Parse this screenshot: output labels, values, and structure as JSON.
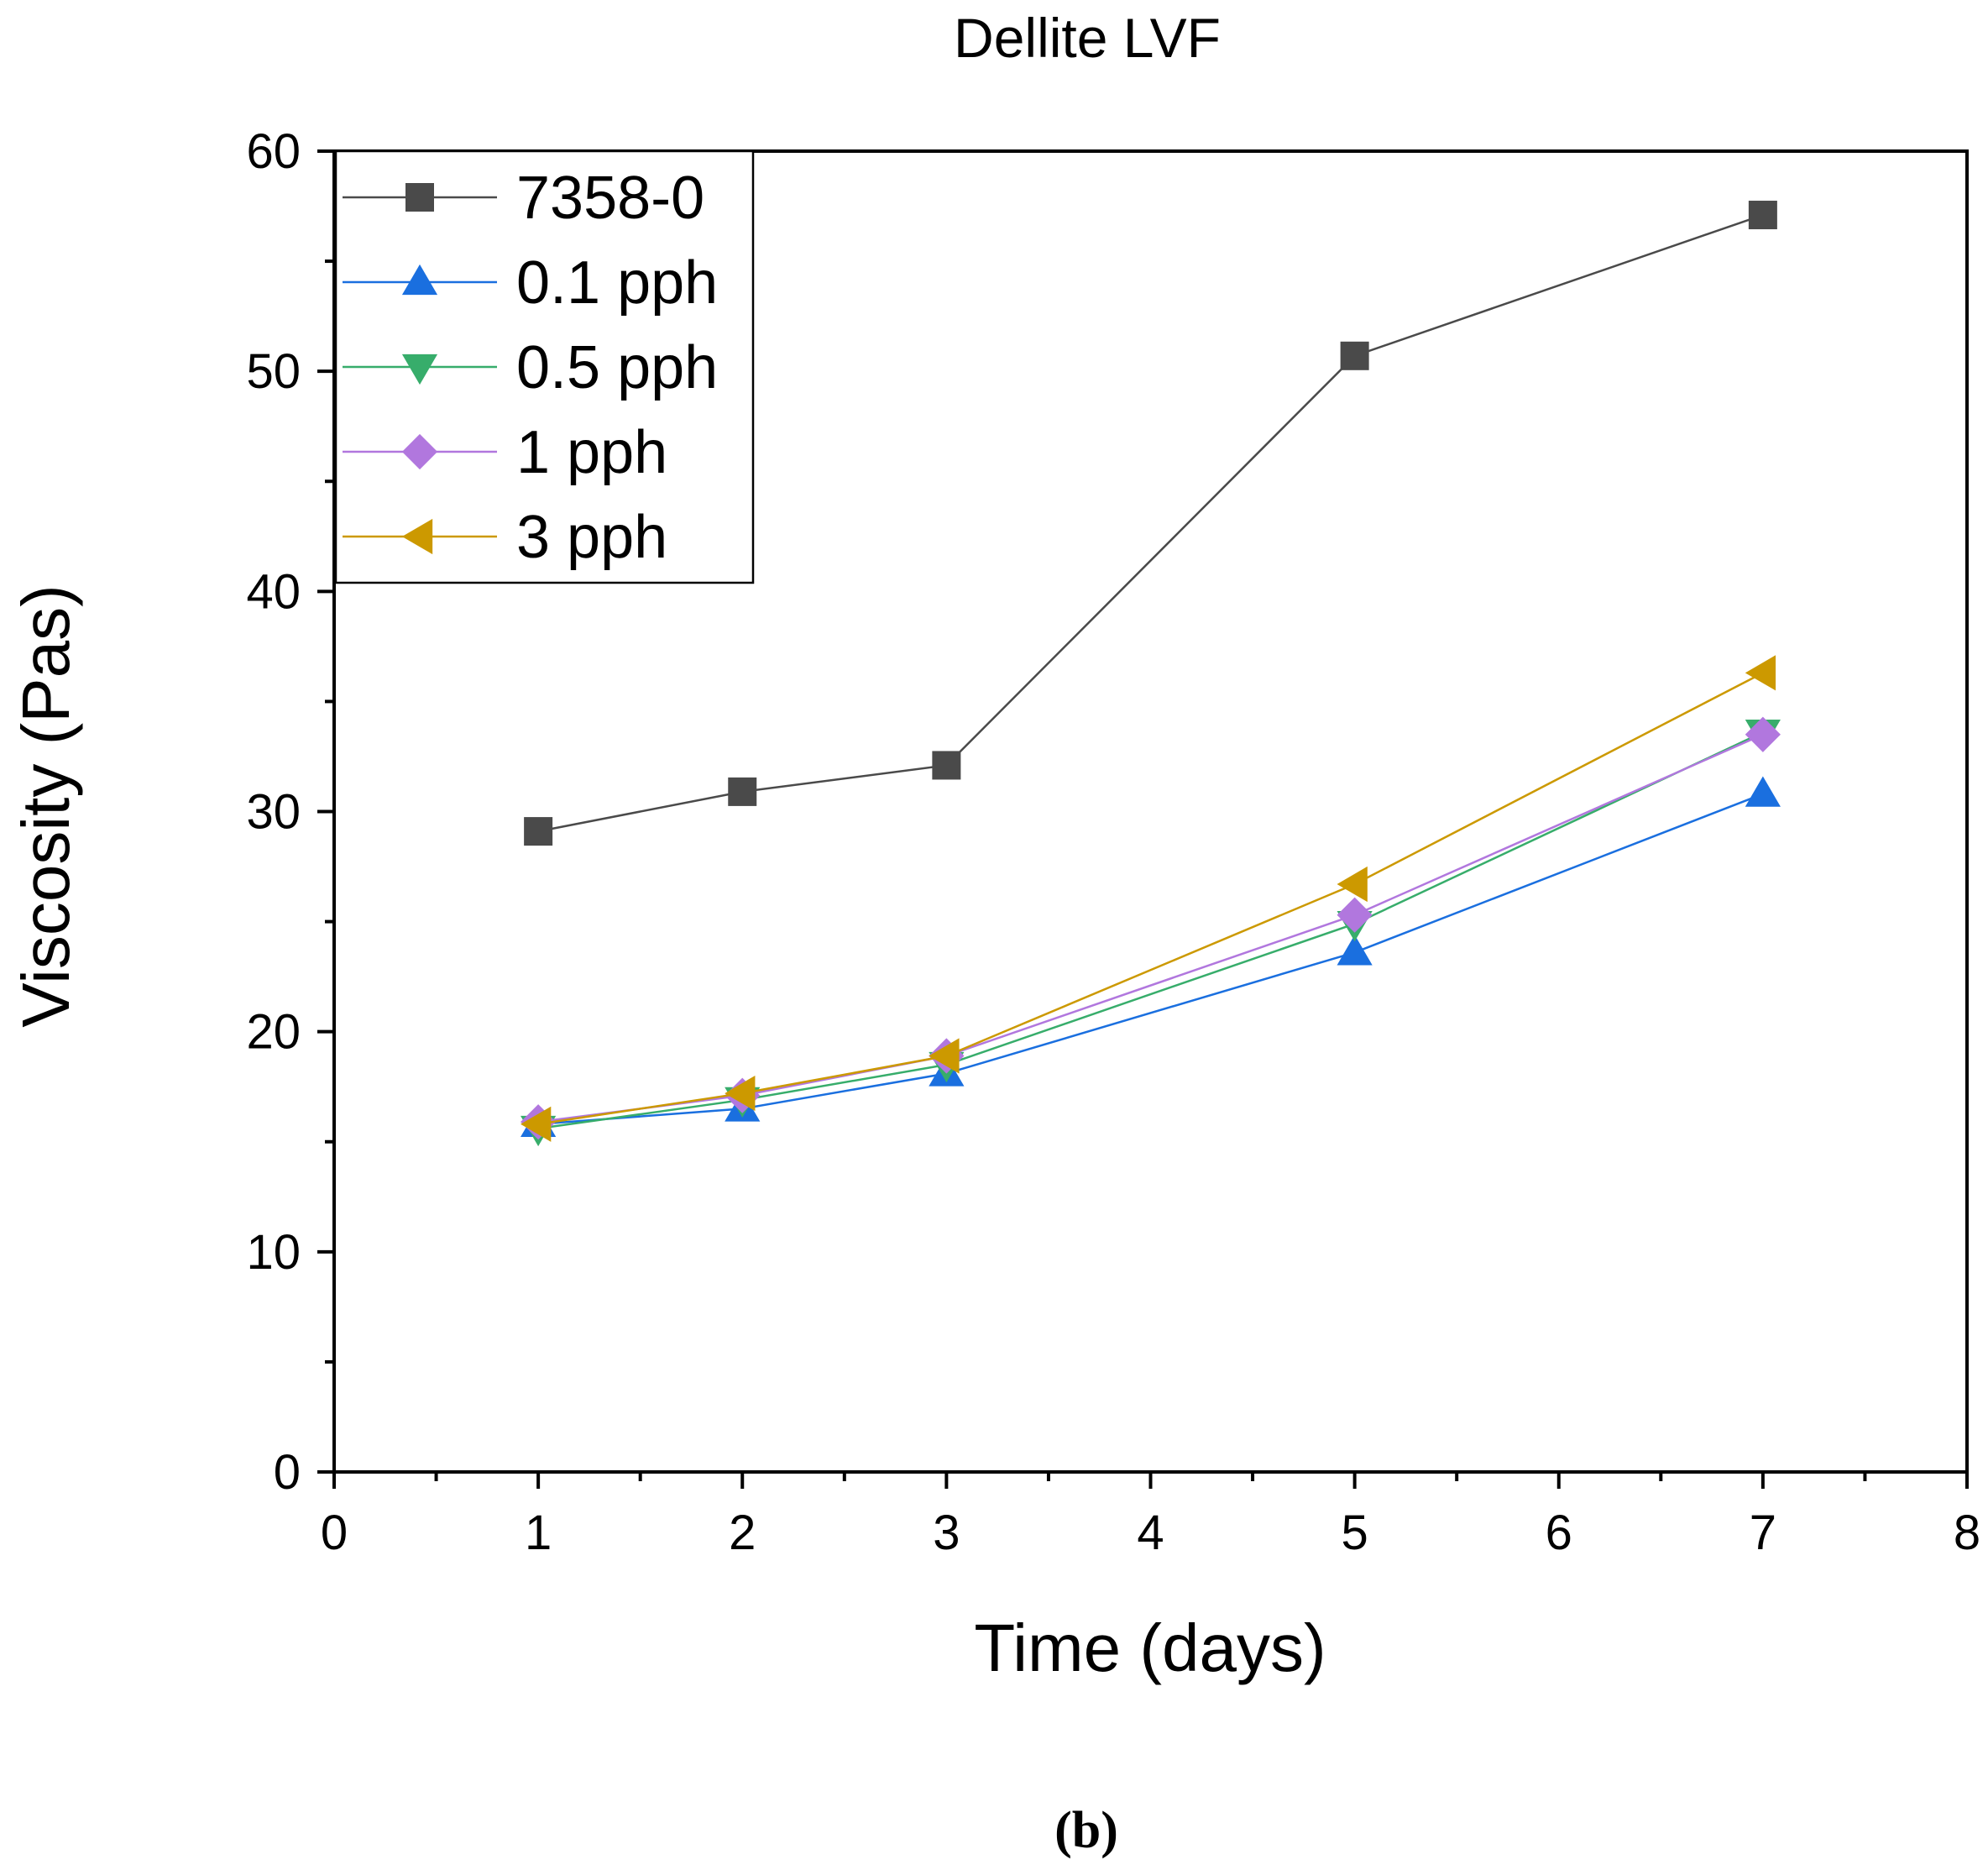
{
  "chart_data": {
    "type": "line",
    "title": "Dellite LVF",
    "xlabel": "Time (days)",
    "ylabel": "Viscosity (Pas)",
    "xlim": [
      0,
      8
    ],
    "ylim": [
      0,
      60
    ],
    "xticks": [
      0,
      1,
      2,
      3,
      4,
      5,
      6,
      7,
      8
    ],
    "yticks": [
      0,
      10,
      20,
      30,
      40,
      50,
      60
    ],
    "x": [
      1,
      2,
      3,
      5,
      7
    ],
    "legend_position": "top-left",
    "series": [
      {
        "name": "7358-0",
        "marker": "square",
        "color": "#4a4a4a",
        "values": [
          29.1,
          30.9,
          32.1,
          50.7,
          57.1
        ]
      },
      {
        "name": "0.1 pph",
        "marker": "triangle-up",
        "color": "#1a6fdf",
        "values": [
          15.8,
          16.5,
          18.1,
          23.6,
          30.8
        ]
      },
      {
        "name": "0.5 pph",
        "marker": "triangle-down",
        "color": "#37ad6b",
        "values": [
          15.6,
          16.9,
          18.5,
          24.9,
          33.6
        ]
      },
      {
        "name": "1 pph",
        "marker": "diamond",
        "color": "#b177de",
        "values": [
          15.9,
          17.1,
          18.9,
          25.3,
          33.5
        ]
      },
      {
        "name": "3 pph",
        "marker": "triangle-left",
        "color": "#cc9900",
        "values": [
          15.8,
          17.2,
          18.9,
          26.7,
          36.3
        ]
      }
    ]
  },
  "caption": "(b)"
}
